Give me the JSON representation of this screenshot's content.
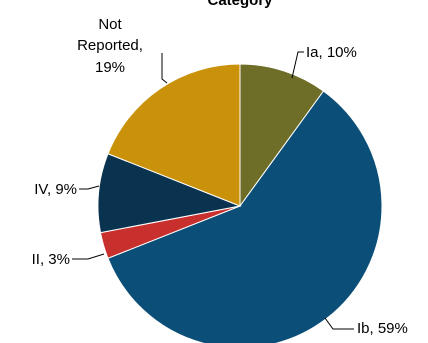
{
  "chart_data": {
    "type": "pie",
    "title": "Category",
    "slices": [
      {
        "name": "Ia",
        "value": 10,
        "label": "Ia, 10%",
        "color": "#6e6e28"
      },
      {
        "name": "Ib",
        "value": 59,
        "label": "Ib, 59%",
        "color": "#0b4f79"
      },
      {
        "name": "II",
        "value": 3,
        "label": "II, 3%",
        "color": "#c8302e"
      },
      {
        "name": "IV",
        "value": 9,
        "label": "IV, 9%",
        "color": "#0a3350"
      },
      {
        "name": "Not Reported",
        "value": 19,
        "label_lines": [
          "Not",
          "Reported,",
          "19%"
        ],
        "color": "#c9920a"
      }
    ],
    "legend": "none",
    "start_angle": "12 o'clock",
    "direction": "clockwise"
  }
}
